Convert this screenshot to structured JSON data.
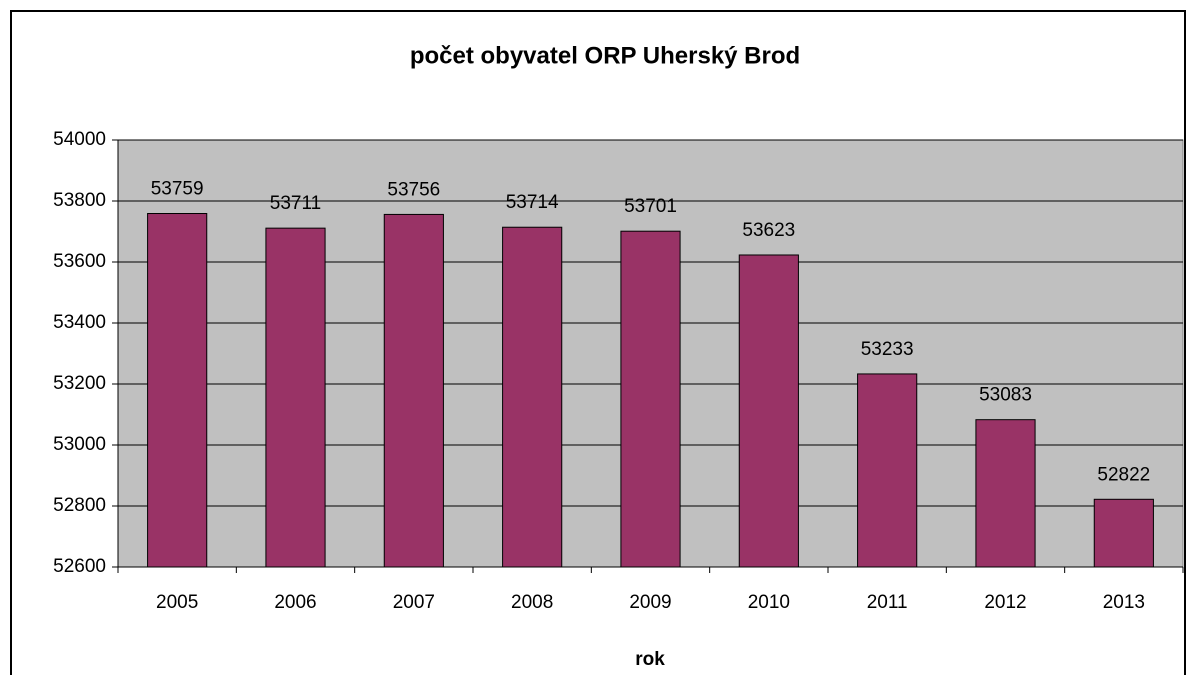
{
  "chart_data": {
    "type": "bar",
    "title": "počet obyvatel ORP Uherský Brod",
    "x_label": "rok",
    "categories": [
      "2005",
      "2006",
      "2007",
      "2008",
      "2009",
      "2010",
      "2011",
      "2012",
      "2013"
    ],
    "values": [
      53759,
      53711,
      53756,
      53714,
      53701,
      53623,
      53233,
      53083,
      52822
    ],
    "color": "#993366",
    "ylim": [
      52600,
      54000
    ],
    "yticks": [
      52600,
      52800,
      53000,
      53200,
      53400,
      53600,
      53800,
      54000
    ],
    "grid": true
  }
}
